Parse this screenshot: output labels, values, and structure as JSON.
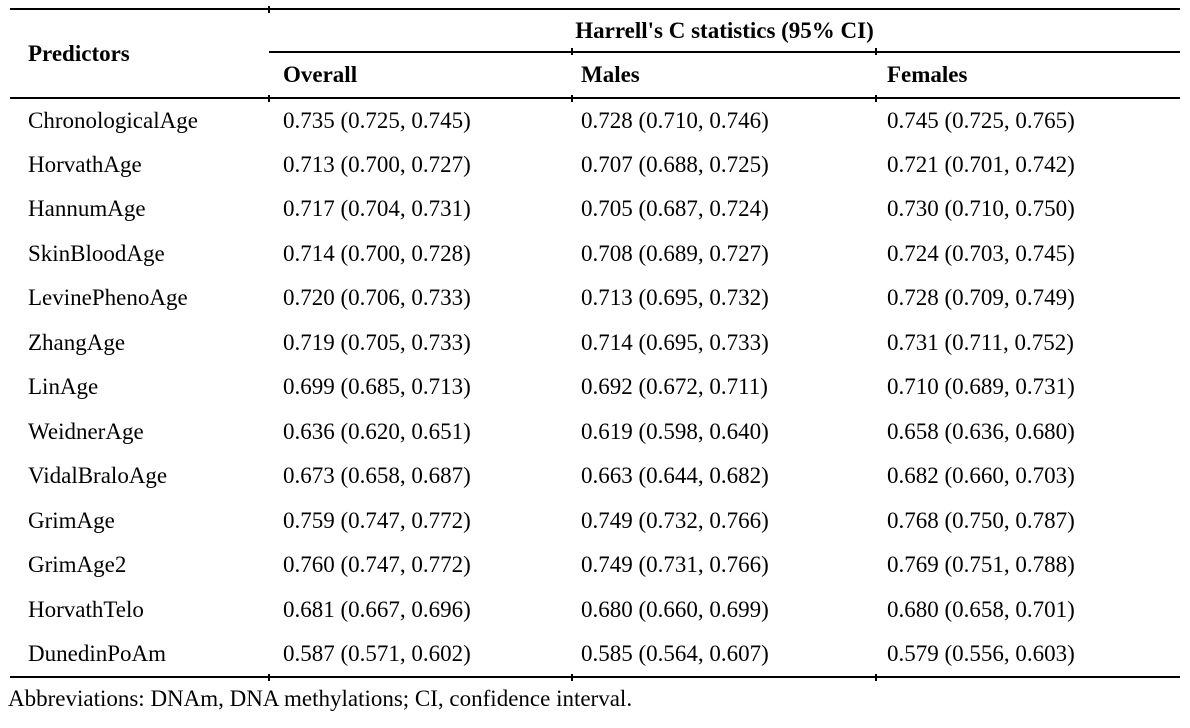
{
  "table": {
    "col1_header": "Predictors",
    "group_header": "Harrell's C statistics (95% CI)",
    "sub_headers": [
      "Overall",
      "Males",
      "Females"
    ],
    "rows": [
      {
        "predictor": "ChronologicalAge",
        "overall": "0.735 (0.725, 0.745)",
        "males": "0.728 (0.710, 0.746)",
        "females": "0.745 (0.725, 0.765)"
      },
      {
        "predictor": "HorvathAge",
        "overall": "0.713 (0.700, 0.727)",
        "males": "0.707 (0.688, 0.725)",
        "females": "0.721 (0.701, 0.742)"
      },
      {
        "predictor": "HannumAge",
        "overall": "0.717 (0.704, 0.731)",
        "males": "0.705 (0.687, 0.724)",
        "females": "0.730 (0.710, 0.750)"
      },
      {
        "predictor": "SkinBloodAge",
        "overall": "0.714 (0.700, 0.728)",
        "males": "0.708 (0.689, 0.727)",
        "females": "0.724 (0.703, 0.745)"
      },
      {
        "predictor": "LevinePhenoAge",
        "overall": "0.720 (0.706, 0.733)",
        "males": "0.713 (0.695, 0.732)",
        "females": "0.728 (0.709, 0.749)"
      },
      {
        "predictor": "ZhangAge",
        "overall": "0.719 (0.705, 0.733)",
        "males": "0.714 (0.695, 0.733)",
        "females": "0.731 (0.711, 0.752)"
      },
      {
        "predictor": "LinAge",
        "overall": "0.699 (0.685, 0.713)",
        "males": "0.692 (0.672, 0.711)",
        "females": "0.710 (0.689, 0.731)"
      },
      {
        "predictor": "WeidnerAge",
        "overall": "0.636 (0.620, 0.651)",
        "males": "0.619 (0.598, 0.640)",
        "females": "0.658 (0.636, 0.680)"
      },
      {
        "predictor": "VidalBraloAge",
        "overall": "0.673 (0.658, 0.687)",
        "males": "0.663 (0.644, 0.682)",
        "females": "0.682 (0.660, 0.703)"
      },
      {
        "predictor": "GrimAge",
        "overall": "0.759 (0.747, 0.772)",
        "males": "0.749 (0.732, 0.766)",
        "females": "0.768 (0.750, 0.787)"
      },
      {
        "predictor": "GrimAge2",
        "overall": "0.760 (0.747, 0.772)",
        "males": "0.749 (0.731, 0.766)",
        "females": "0.769 (0.751, 0.788)"
      },
      {
        "predictor": "HorvathTelo",
        "overall": "0.681 (0.667, 0.696)",
        "males": "0.680 (0.660, 0.699)",
        "females": "0.680 (0.658, 0.701)"
      },
      {
        "predictor": "DunedinPoAm",
        "overall": "0.587 (0.571, 0.602)",
        "males": "0.585 (0.564, 0.607)",
        "females": "0.579 (0.556, 0.603)"
      }
    ],
    "footnote": "Abbreviations: DNAm, DNA methylations; CI, confidence interval."
  },
  "colors": {
    "text": "#000000",
    "background": "#ffffff",
    "rule": "#000000"
  }
}
